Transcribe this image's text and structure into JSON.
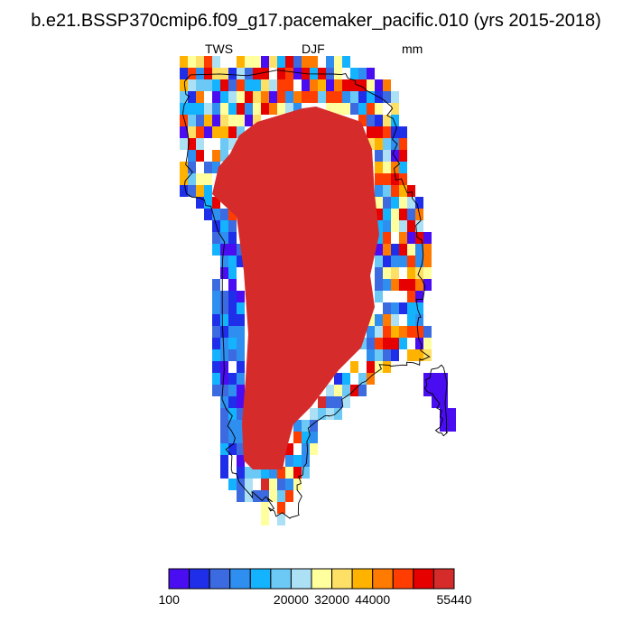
{
  "title": "b.e21.BSSP370cmip6.f09_g17.pacemaker_pacific.010 (yrs 2015-2018)",
  "variable": "TWS",
  "season": "DJF",
  "units": "mm",
  "colorbar": {
    "colors": [
      "#4a0cf0",
      "#1f2ee8",
      "#3c6ae0",
      "#2f8ff0",
      "#14b3ff",
      "#6cc9f5",
      "#ace0f5",
      "#ffff9e",
      "#ffe066",
      "#ffb300",
      "#ff7a00",
      "#ff3d00",
      "#e60000",
      "#d62b2b"
    ],
    "labels": [
      "100",
      "20000",
      "32000",
      "44000",
      "55440"
    ],
    "label_after_box": [
      0,
      6,
      8,
      10,
      14
    ]
  }
}
